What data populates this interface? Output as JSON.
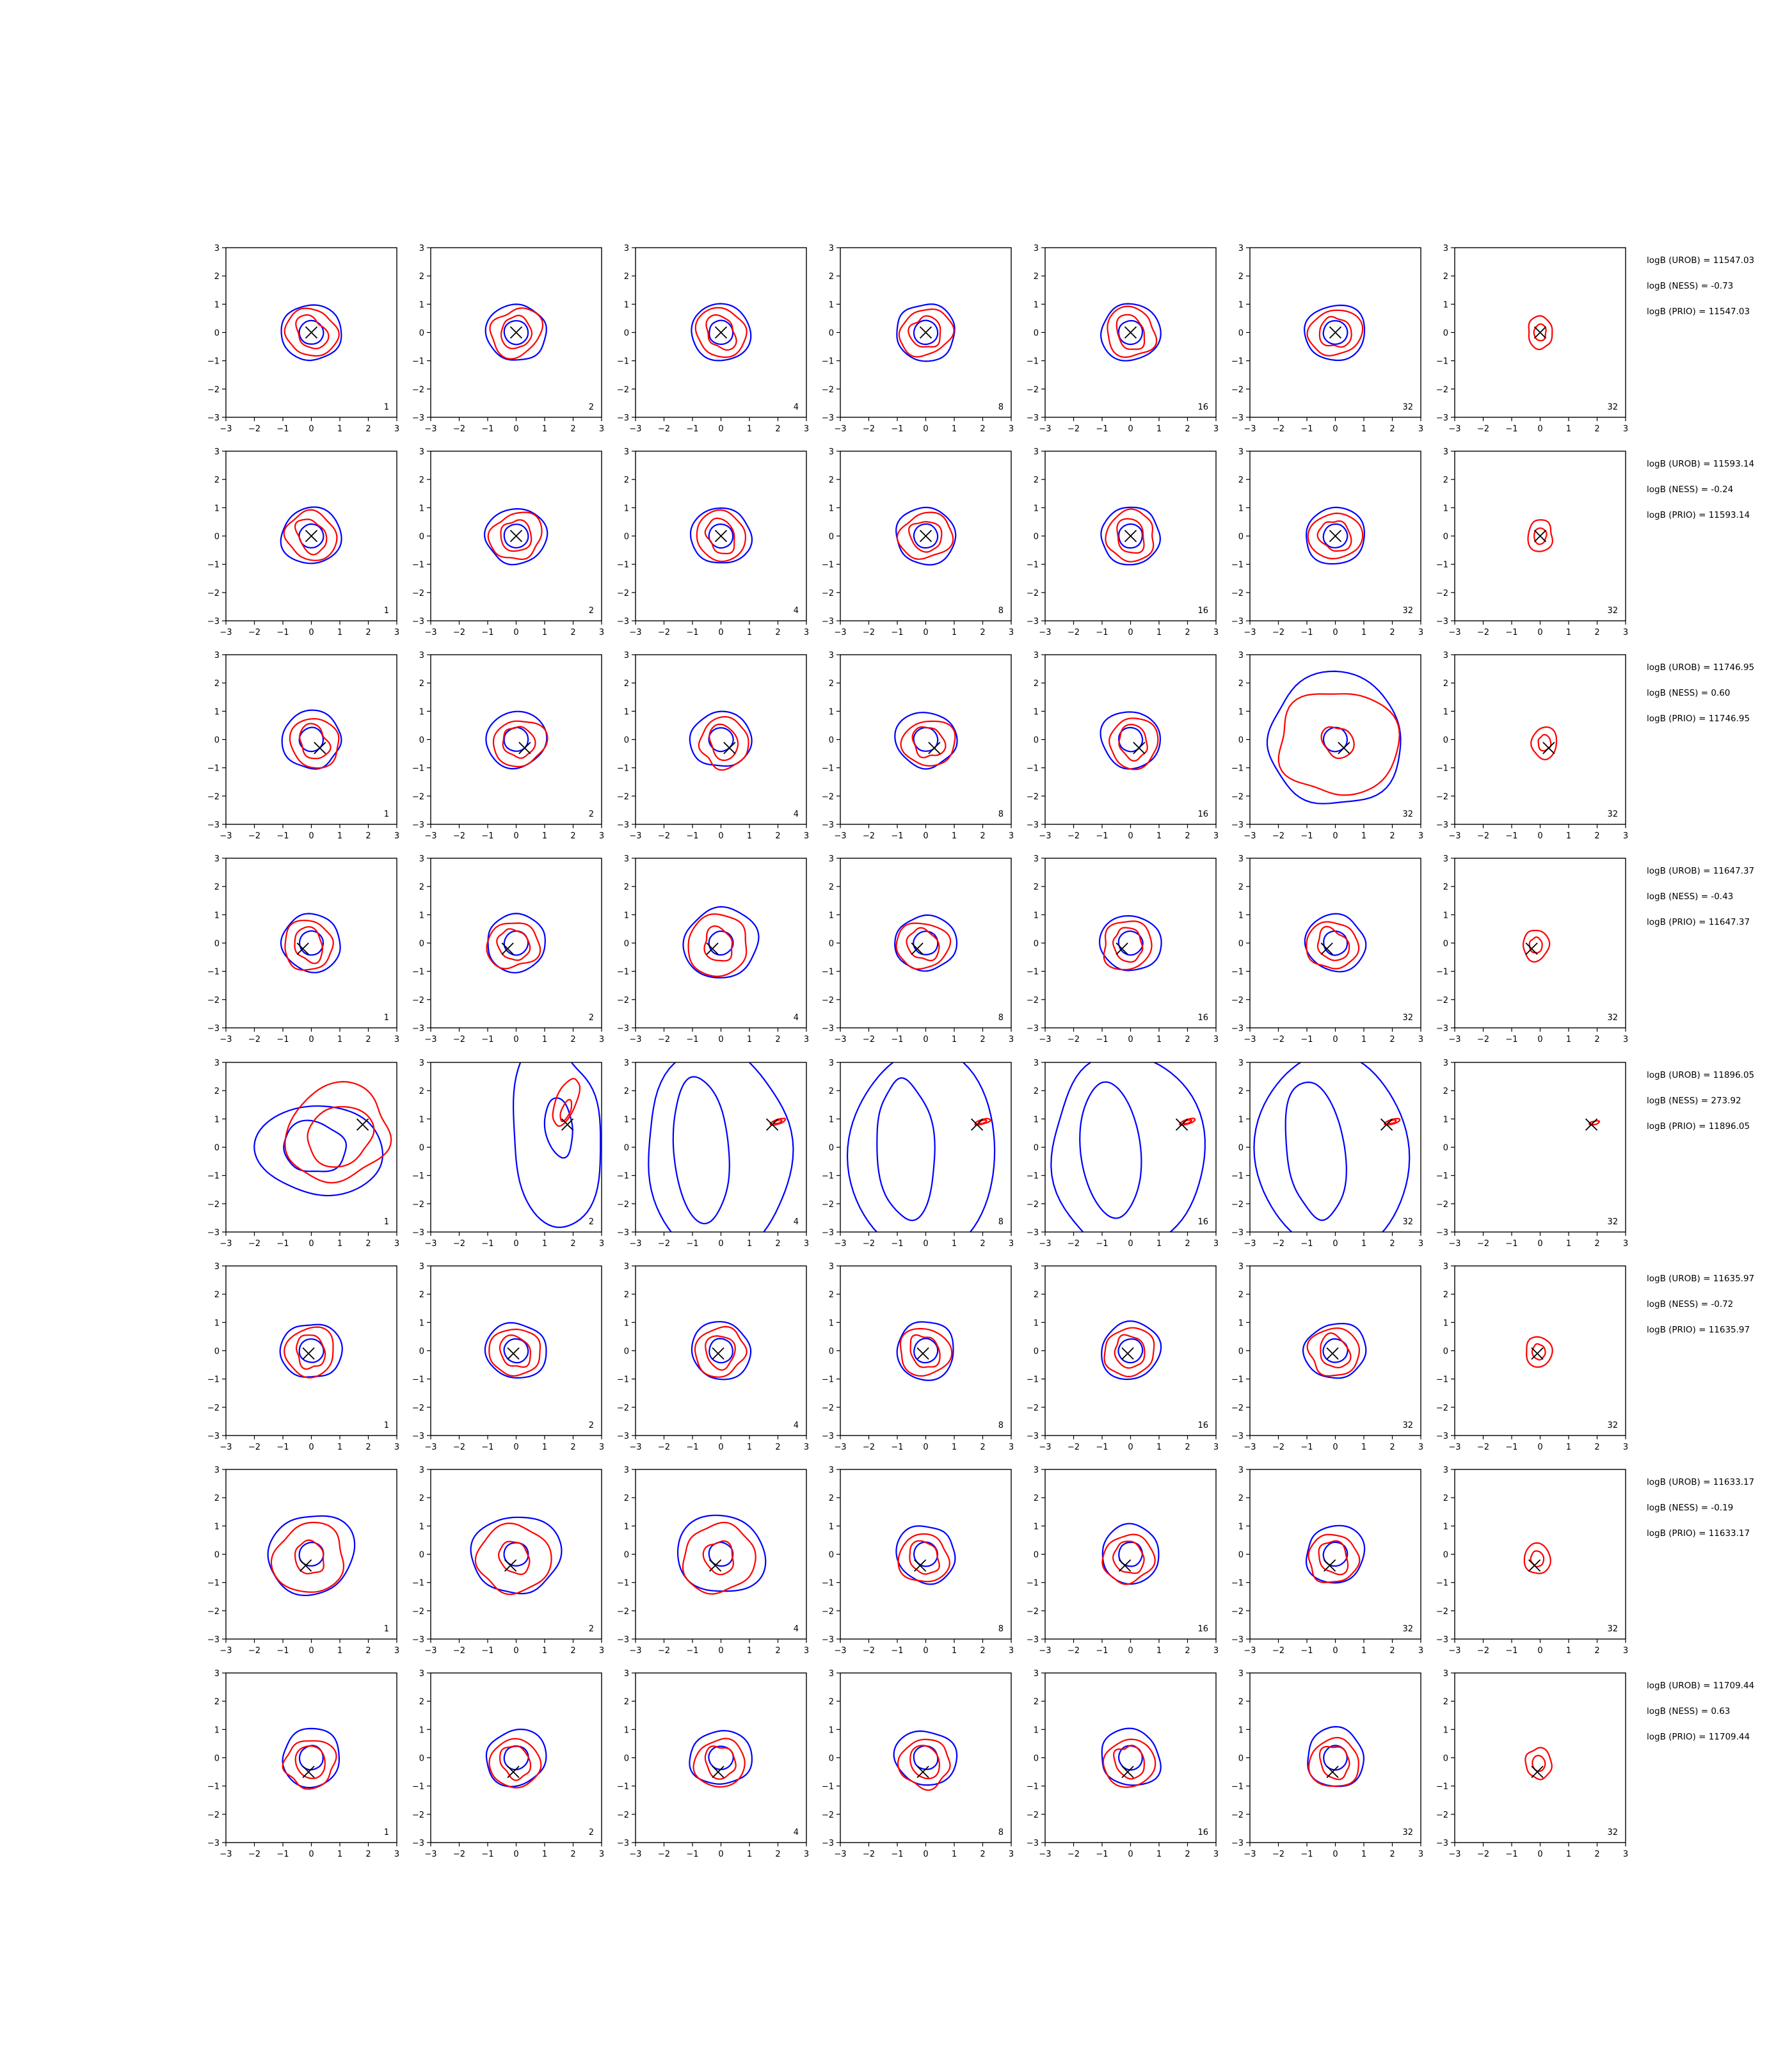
{
  "figure": {
    "columns": [
      1,
      2,
      4,
      8,
      16,
      32,
      32
    ],
    "axis": {
      "xlim": [
        -3,
        3
      ],
      "ylim": [
        -3,
        3
      ],
      "ticks": [
        -3,
        -2,
        -1,
        0,
        1,
        2,
        3
      ]
    },
    "colors": {
      "blue_contour": "#0000ff",
      "red_contour": "#ff0000",
      "marker": "#000000"
    }
  },
  "chart_data": {
    "type": "contour-grid",
    "rows": [
      {
        "marker": [
          0.0,
          0.0
        ],
        "logB_UROB": "logB (UROB) = 11547.03",
        "logB_NESS": "logB (NESS) = -0.73",
        "logB_PRIO": "logB (PRIO) = 11547.03"
      },
      {
        "marker": [
          0.0,
          0.0
        ],
        "logB_UROB": "logB (UROB) = 11593.14",
        "logB_NESS": "logB (NESS) = -0.24",
        "logB_PRIO": "logB (PRIO) = 11593.14"
      },
      {
        "marker": [
          0.3,
          -0.3
        ],
        "logB_UROB": "logB (UROB) = 11746.95",
        "logB_NESS": "logB (NESS) = 0.60",
        "logB_PRIO": "logB (PRIO) = 11746.95"
      },
      {
        "marker": [
          -0.3,
          -0.2
        ],
        "logB_UROB": "logB (UROB) = 11647.37",
        "logB_NESS": "logB (NESS) = -0.43",
        "logB_PRIO": "logB (PRIO) = 11647.37"
      },
      {
        "marker": [
          1.8,
          0.8
        ],
        "logB_UROB": "logB (UROB) = 11896.05",
        "logB_NESS": "logB (NESS) = 273.92",
        "logB_PRIO": "logB (PRIO) = 11896.05"
      },
      {
        "marker": [
          -0.1,
          -0.1
        ],
        "logB_UROB": "logB (UROB) = 11635.97",
        "logB_NESS": "logB (NESS) = -0.72",
        "logB_PRIO": "logB (PRIO) = 11635.97"
      },
      {
        "marker": [
          -0.2,
          -0.4
        ],
        "logB_UROB": "logB (UROB) = 11633.17",
        "logB_NESS": "logB (NESS) = -0.19",
        "logB_PRIO": "logB (PRIO) = 11633.17"
      },
      {
        "marker": [
          -0.1,
          -0.5
        ],
        "logB_UROB": "logB (UROB) = 11709.44",
        "logB_NESS": "logB (NESS) = 0.63",
        "logB_PRIO": "logB (PRIO) = 11709.44"
      }
    ]
  }
}
